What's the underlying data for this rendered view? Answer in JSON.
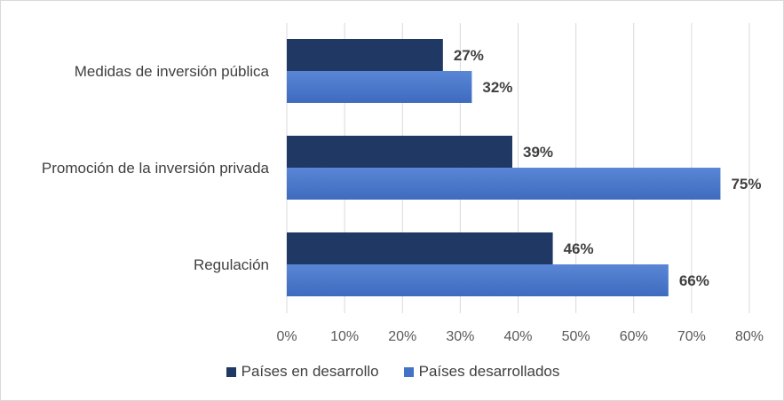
{
  "chart_data": {
    "type": "bar",
    "orientation": "horizontal",
    "categories": [
      "Medidas de inversión pública",
      "Promoción de la inversión privada",
      "Regulación"
    ],
    "series": [
      {
        "name": "Países en desarrollo",
        "values": [
          27,
          39,
          46
        ],
        "labels": [
          "27%",
          "39%",
          "46%"
        ],
        "color": "#203864"
      },
      {
        "name": "Países desarrollados",
        "values": [
          32,
          75,
          66
        ],
        "labels": [
          "32%",
          "75%",
          "66%"
        ],
        "color": "#4472C4"
      }
    ],
    "x_ticks": [
      "0%",
      "10%",
      "20%",
      "30%",
      "40%",
      "50%",
      "60%",
      "70%",
      "80%"
    ],
    "xlim": [
      0,
      80
    ],
    "grid": true,
    "legend_position": "bottom"
  }
}
